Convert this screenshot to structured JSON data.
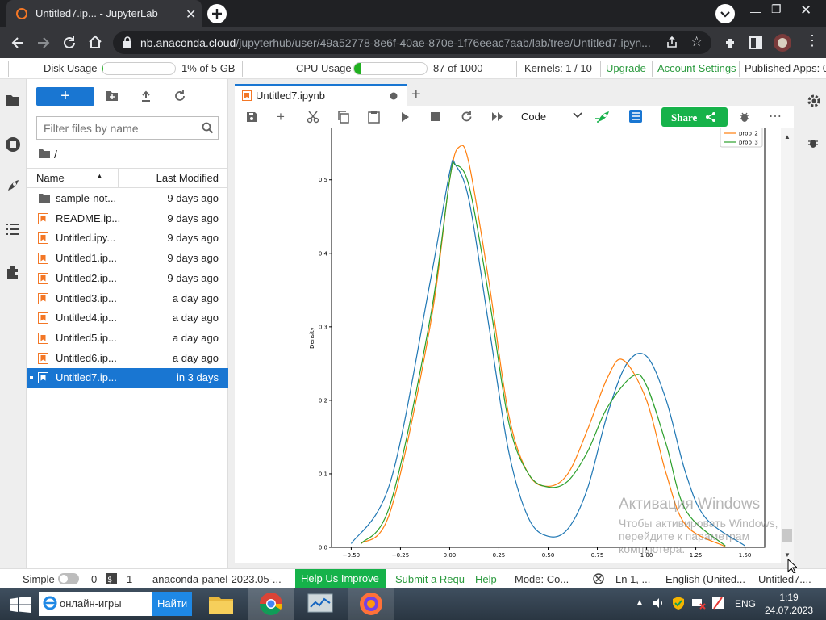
{
  "browser": {
    "tab_title": "Untitled7.ip... - JupyterLab",
    "url_host": "nb.anaconda.cloud",
    "url_path": "/jupyterhub/user/49a52778-8e6f-40ae-870e-1f76eeac7aab/lab/tree/Untitled7.ipyn..."
  },
  "topbar": {
    "disk_label": "Disk Usage",
    "disk_value": "1% of 5 GB",
    "disk_fraction": 0.01,
    "cpu_label": "CPU Usage",
    "cpu_value": "87 of 1000",
    "cpu_fraction": 0.087,
    "kernels": "Kernels: 1 / 10",
    "upgrade": "Upgrade",
    "account_settings": "Account Settings",
    "published_apps": "Published Apps: 0"
  },
  "filebrowser": {
    "new_label": "+",
    "filter_placeholder": "Filter files by name",
    "path": "/",
    "col_name": "Name",
    "col_modified": "Last Modified",
    "files": [
      {
        "name": "sample-not...",
        "modified": "9 days ago",
        "type": "folder"
      },
      {
        "name": "README.ip...",
        "modified": "9 days ago",
        "type": "notebook"
      },
      {
        "name": "Untitled.ipy...",
        "modified": "9 days ago",
        "type": "notebook"
      },
      {
        "name": "Untitled1.ip...",
        "modified": "9 days ago",
        "type": "notebook"
      },
      {
        "name": "Untitled2.ip...",
        "modified": "9 days ago",
        "type": "notebook"
      },
      {
        "name": "Untitled3.ip...",
        "modified": "a day ago",
        "type": "notebook"
      },
      {
        "name": "Untitled4.ip...",
        "modified": "a day ago",
        "type": "notebook"
      },
      {
        "name": "Untitled5.ip...",
        "modified": "a day ago",
        "type": "notebook"
      },
      {
        "name": "Untitled6.ip...",
        "modified": "a day ago",
        "type": "notebook"
      },
      {
        "name": "Untitled7.ip...",
        "modified": "in 3 days",
        "type": "notebook",
        "selected": true
      }
    ]
  },
  "notebook": {
    "tab_label": "Untitled7.ipynb",
    "cell_type": "Code",
    "share_label": "Share"
  },
  "chart_data": {
    "type": "line",
    "ylabel": "Density",
    "xlabel": "",
    "xlim": [
      -0.6,
      1.6
    ],
    "ylim": [
      0.0,
      0.57
    ],
    "x_ticks": [
      "−0.50",
      "−0.25",
      "0.00",
      "0.25",
      "0.50",
      "0.75",
      "1.00",
      "1.25",
      "1.50"
    ],
    "y_ticks": [
      "0.0",
      "0.1",
      "0.2",
      "0.3",
      "0.4",
      "0.5"
    ],
    "legend_visible": [
      "prob_2",
      "prob_3"
    ],
    "series": [
      {
        "name": "",
        "color": "#1f77b4",
        "x": [
          -0.5,
          -0.3,
          -0.1,
          0.0,
          0.03,
          0.1,
          0.2,
          0.3,
          0.4,
          0.5,
          0.6,
          0.7,
          0.8,
          0.9,
          1.0,
          1.1,
          1.2,
          1.3,
          1.5
        ],
        "y": [
          0.005,
          0.09,
          0.36,
          0.51,
          0.52,
          0.47,
          0.3,
          0.13,
          0.04,
          0.015,
          0.025,
          0.08,
          0.18,
          0.25,
          0.26,
          0.2,
          0.1,
          0.04,
          0.002
        ]
      },
      {
        "name": "prob_2",
        "color": "#ff7f0e",
        "x": [
          -0.45,
          -0.3,
          -0.1,
          0.0,
          0.05,
          0.1,
          0.2,
          0.3,
          0.4,
          0.5,
          0.6,
          0.7,
          0.8,
          0.88,
          1.0,
          1.1,
          1.2,
          1.4
        ],
        "y": [
          0.005,
          0.05,
          0.3,
          0.5,
          0.545,
          0.52,
          0.36,
          0.18,
          0.1,
          0.083,
          0.1,
          0.16,
          0.23,
          0.255,
          0.2,
          0.1,
          0.03,
          0.001
        ]
      },
      {
        "name": "prob_3",
        "color": "#2ca02c",
        "x": [
          -0.45,
          -0.3,
          -0.1,
          0.0,
          0.03,
          0.1,
          0.2,
          0.3,
          0.4,
          0.5,
          0.6,
          0.7,
          0.8,
          0.93,
          1.0,
          1.1,
          1.2,
          1.4
        ],
        "y": [
          0.005,
          0.06,
          0.31,
          0.5,
          0.52,
          0.49,
          0.34,
          0.17,
          0.1,
          0.082,
          0.09,
          0.13,
          0.19,
          0.233,
          0.22,
          0.14,
          0.05,
          0.002
        ]
      }
    ]
  },
  "watermark": {
    "line1": "Активация Windows",
    "line2": "Чтобы активировать Windows,",
    "line3": "перейдите к параметрам",
    "line4": "компьютера."
  },
  "statusbar": {
    "simple": "Simple",
    "count0": "0",
    "count1": "1",
    "panel": "anaconda-panel-2023.05-...",
    "help_improve": "Help Us Improve",
    "submit": "Submit a Requ",
    "help": "Help",
    "mode": "Mode: Co...",
    "position": "Ln 1, ...",
    "language": "English (United...",
    "filename": "Untitled7...."
  },
  "taskbar": {
    "search_text": "онлайн-игры",
    "search_button": "Найти",
    "lang": "ENG",
    "time": "1:19",
    "date": "24.07.2023"
  }
}
